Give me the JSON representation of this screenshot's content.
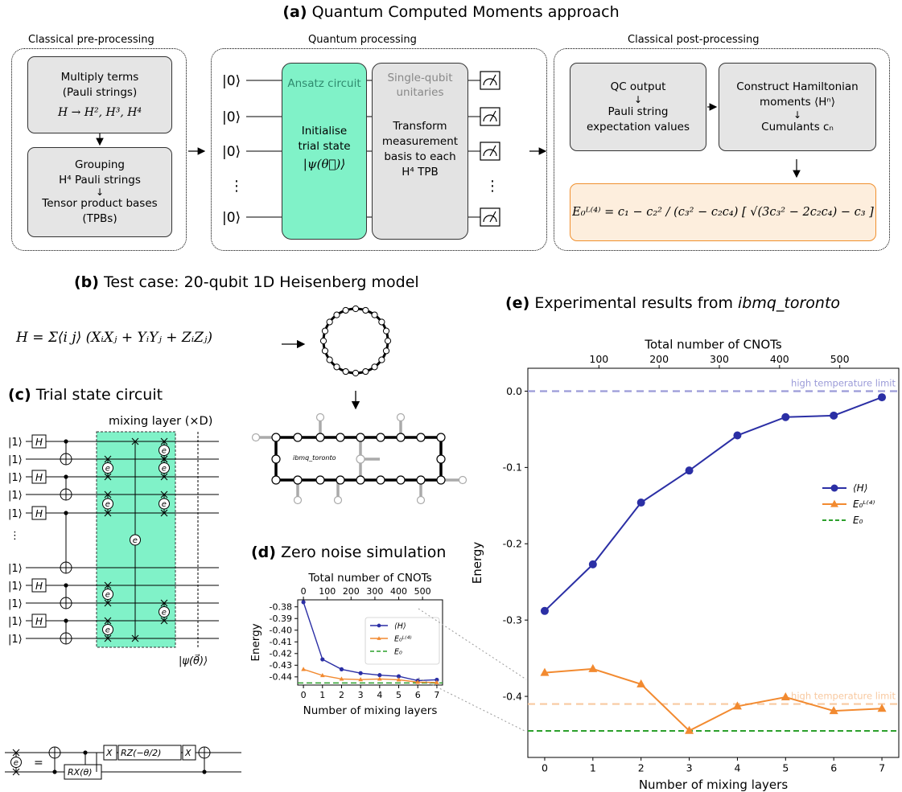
{
  "panel_a": {
    "title_letter": "(a)",
    "title_text": "Quantum Computed Moments approach",
    "sections": {
      "pre": "Classical pre-processing",
      "quantum": "Quantum processing",
      "post": "Classical post-processing"
    },
    "pre_box1": {
      "line1": "Multiply terms",
      "line2": "(Pauli strings)",
      "formula": "H → H², H³, H⁴"
    },
    "pre_box2": {
      "line1": "Grouping",
      "line2": "H⁴ Pauli strings",
      "line3": "Tensor product bases",
      "line4": "(TPBs)"
    },
    "ket0": "|0⟩",
    "ansatz": {
      "label": "Ansatz circuit",
      "line1": "Initialise",
      "line2": "trial state",
      "state": "|ψ(θ⃗)⟩"
    },
    "unitaries": {
      "label1": "Single-qubit",
      "label2": "unitaries",
      "line1": "Transform",
      "line2": "measurement",
      "line3": "basis to each",
      "line4": "H⁴ TPB"
    },
    "post_box1": {
      "line1": "QC output",
      "line2": "Pauli string",
      "line3": "expectation values"
    },
    "post_box2": {
      "line1": "Construct Hamiltonian",
      "line2": "moments ⟨Hⁿ⟩",
      "line3": "Cumulants cₙ"
    },
    "formula_box": "E₀ᴸ⁽⁴⁾ = c₁ − c₂² / (c₃² − c₂c₄) [ √(3c₃² − 2c₂c₄) − c₃ ]"
  },
  "panel_b": {
    "title_letter": "(b)",
    "title_text": "Test case: 20-qubit 1D Heisenberg model",
    "hamiltonian": "H = Σ⟨i j⟩ (XᵢXⱼ + YᵢYⱼ + ZᵢZⱼ)",
    "device_label": "ibmq_toronto"
  },
  "panel_c": {
    "title_letter": "(c)",
    "title_text": "Trial state circuit",
    "mixing_label": "mixing layer (×D)",
    "ket1": "|1⟩",
    "gate_h": "H",
    "gate_x": "X",
    "gate_rx": "RX(θ)",
    "gate_rz": "RZ(−θ/2)",
    "gate_e": "e",
    "output_state": "|ψ(θ⃗)⟩"
  },
  "panel_d": {
    "title_letter": "(d)",
    "title_text": "Zero noise simulation",
    "chart_data": {
      "type": "line",
      "xlabel": "Number of mixing layers",
      "x2label": "Total number of CNOTs",
      "ylabel": "Energy",
      "x": [
        0,
        1,
        2,
        3,
        4,
        5,
        6,
        7
      ],
      "xlim": [
        -0.3,
        7.3
      ],
      "ylim": [
        -0.447,
        -0.374
      ],
      "yticks": [
        -0.38,
        -0.39,
        -0.4,
        -0.41,
        -0.42,
        -0.43,
        -0.44
      ],
      "ytick_labels": [
        "-0.38",
        "-0.39",
        "-0.40",
        "-0.41",
        "-0.42",
        "-0.43",
        "-0.44"
      ],
      "top_ticks": [
        0,
        100,
        200,
        300,
        400,
        500
      ],
      "cnots_per_layer": 80,
      "series": [
        {
          "name": "⟨H⟩",
          "color": "#2b2fa5",
          "marker": "circle",
          "values": [
            -0.376,
            -0.425,
            -0.4335,
            -0.4368,
            -0.4385,
            -0.4395,
            -0.4432,
            -0.4425
          ]
        },
        {
          "name": "E₀ᴸ⁽⁴⁾",
          "color": "#f28a30",
          "marker": "triangle",
          "values": [
            -0.4335,
            -0.4388,
            -0.4418,
            -0.4423,
            -0.4418,
            -0.4425,
            -0.4445,
            -0.4448
          ]
        },
        {
          "name": "E₀",
          "color": "#2ca02c",
          "style": "dashed",
          "constant": -0.4452
        }
      ],
      "legend": "top-right"
    }
  },
  "panel_e": {
    "title_letter": "(e)",
    "title_text": "Experimental results from",
    "title_device": "ibmq_toronto",
    "chart_data": {
      "type": "line",
      "xlabel": "Number of mixing layers",
      "x2label": "Total number of CNOTs",
      "ylabel": "Energy",
      "x": [
        0,
        1,
        2,
        3,
        4,
        5,
        6,
        7
      ],
      "xlim": [
        -0.35,
        7.35
      ],
      "ylim": [
        -0.48,
        0.03
      ],
      "yticks": [
        0.0,
        -0.1,
        -0.2,
        -0.3,
        -0.4
      ],
      "ytick_labels": [
        "0.0",
        "-0.1",
        "-0.2",
        "-0.3",
        "-0.4"
      ],
      "top_ticks": [
        100,
        200,
        300,
        400,
        500
      ],
      "cnots_per_layer": 80,
      "cnots_offset": 10,
      "series": [
        {
          "name": "⟨H⟩",
          "color": "#2b2fa5",
          "marker": "circle",
          "values": [
            -0.288,
            -0.227,
            -0.146,
            -0.104,
            -0.058,
            -0.034,
            -0.032,
            -0.008
          ]
        },
        {
          "name": "E₀ᴸ⁽⁴⁾",
          "color": "#f28a30",
          "marker": "triangle",
          "values": [
            -0.369,
            -0.364,
            -0.384,
            -0.445,
            -0.413,
            -0.401,
            -0.419,
            -0.416
          ]
        },
        {
          "name": "E₀",
          "color": "#2ca02c",
          "style": "dashed",
          "constant": -0.4452
        }
      ],
      "hlines": [
        {
          "value": 0.0,
          "color": "#9b9bd8",
          "label": "high temperature limit"
        },
        {
          "value": -0.41,
          "color": "#f8c9a0",
          "label": "high temperature limit"
        }
      ],
      "legend": "center-right"
    }
  }
}
